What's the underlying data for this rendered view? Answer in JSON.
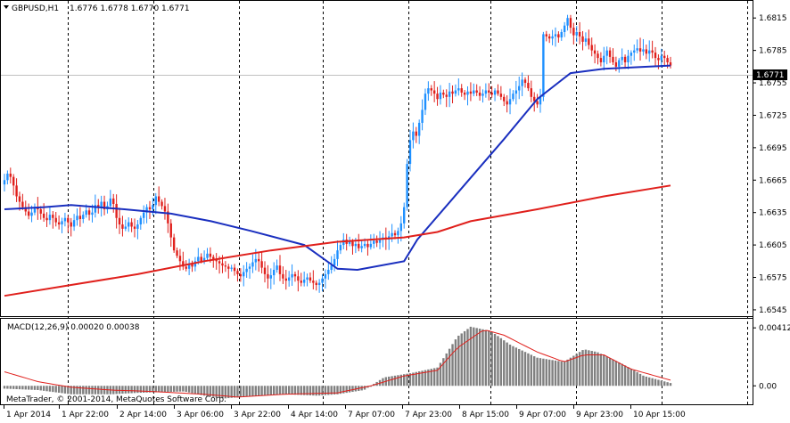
{
  "header": {
    "symbol": "GBPUSD,H1",
    "ohlc": "1.6776 1.6778 1.6770 1.6771"
  },
  "current_price": "1.6771",
  "macd": {
    "label": "MACD(12,26,9) 0.00020 0.00038"
  },
  "copyright": "MetaTrader, © 2001-2014, MetaQuotes Software Corp.",
  "colors": {
    "bull": "#1e90ff",
    "bear": "#e0201c",
    "ma_fast": "#1a2fbf",
    "ma_slow": "#e0201c",
    "macd_hist": "#808080",
    "macd_signal": "#e0201c",
    "grid": "#000000"
  },
  "chart_data": [
    {
      "type": "candlestick",
      "title": "GBPUSD,H1",
      "x_labels": [
        "1 Apr 2014",
        "1 Apr 22:00",
        "2 Apr 14:00",
        "3 Apr 06:00",
        "3 Apr 22:00",
        "4 Apr 14:00",
        "7 Apr 07:00",
        "7 Apr 23:00",
        "8 Apr 15:00",
        "9 Apr 07:00",
        "9 Apr 23:00",
        "10 Apr 15:00"
      ],
      "y_ticks": [
        "1.6815",
        "1.6785",
        "1.6755",
        "1.6725",
        "1.6695",
        "1.6665",
        "1.6635",
        "1.6605",
        "1.6575",
        "1.6545"
      ],
      "ylim": [
        1.654,
        1.683
      ],
      "grid": "vertical dashed",
      "closes": [
        1.6665,
        1.6671,
        1.6668,
        1.666,
        1.665,
        1.6645,
        1.664,
        1.6636,
        1.6632,
        1.6635,
        1.664,
        1.6638,
        1.6634,
        1.663,
        1.6628,
        1.6633,
        1.663,
        1.6626,
        1.6624,
        1.6627,
        1.663,
        1.6626,
        1.6622,
        1.6628,
        1.6632,
        1.6629,
        1.6633,
        1.6637,
        1.6633,
        1.6635,
        1.6642,
        1.664,
        1.6645,
        1.6638,
        1.6641,
        1.6648,
        1.6643,
        1.663,
        1.6624,
        1.662,
        1.6622,
        1.6626,
        1.6622,
        1.662,
        1.6624,
        1.663,
        1.6635,
        1.664,
        1.6638,
        1.6642,
        1.665,
        1.6645,
        1.6641,
        1.6636,
        1.6625,
        1.6612,
        1.66,
        1.6595,
        1.659,
        1.6585,
        1.6583,
        1.6588,
        1.6585,
        1.659,
        1.6594,
        1.659,
        1.6593,
        1.6597,
        1.6594,
        1.6592,
        1.659,
        1.6588,
        1.6586,
        1.6585,
        1.6583,
        1.6584,
        1.6581,
        1.6578,
        1.6576,
        1.658,
        1.6583,
        1.6585,
        1.6589,
        1.6592,
        1.659,
        1.6584,
        1.6578,
        1.6574,
        1.6577,
        1.6582,
        1.6586,
        1.6578,
        1.6574,
        1.6572,
        1.6575,
        1.6578,
        1.6576,
        1.6572,
        1.657,
        1.6573,
        1.6575,
        1.6572,
        1.657,
        1.6568,
        1.657,
        1.6574,
        1.6578,
        1.6582,
        1.6586,
        1.6592,
        1.66,
        1.6605,
        1.661,
        1.6606,
        1.6608,
        1.6604,
        1.6606,
        1.6602,
        1.6604,
        1.6606,
        1.6603,
        1.6606,
        1.6609,
        1.6607,
        1.661,
        1.6612,
        1.661,
        1.6613,
        1.6616,
        1.6614,
        1.6618,
        1.6625,
        1.664,
        1.668,
        1.6702,
        1.671,
        1.6706,
        1.6718,
        1.673,
        1.6745,
        1.675,
        1.6748,
        1.6745,
        1.674,
        1.6746,
        1.6744,
        1.6742,
        1.6747,
        1.6745,
        1.6748,
        1.675,
        1.6746,
        1.6744,
        1.6747,
        1.6745,
        1.6748,
        1.6746,
        1.6743,
        1.6745,
        1.6748,
        1.6746,
        1.6744,
        1.6748,
        1.6745,
        1.6742,
        1.6738,
        1.6735,
        1.674,
        1.6745,
        1.6748,
        1.6752,
        1.6758,
        1.6755,
        1.675,
        1.6742,
        1.6738,
        1.6735,
        1.6742,
        1.68,
        1.6798,
        1.6796,
        1.6798,
        1.68,
        1.6797,
        1.6802,
        1.6808,
        1.6815,
        1.6806,
        1.6799,
        1.6802,
        1.6798,
        1.6793,
        1.6796,
        1.679,
        1.6785,
        1.6782,
        1.6778,
        1.6774,
        1.678,
        1.6785,
        1.6779,
        1.6774,
        1.677,
        1.6776,
        1.6779,
        1.6774,
        1.678,
        1.6783,
        1.6785,
        1.6787,
        1.6784,
        1.6786,
        1.6782,
        1.6785,
        1.6783,
        1.6778,
        1.6776,
        1.678,
        1.6778,
        1.6774,
        1.6771
      ],
      "series": [
        {
          "points": [
            [
              0,
              1.6638
            ],
            [
              0.06,
              1.664
            ],
            [
              0.1,
              1.6642
            ],
            [
              0.18,
              1.6638
            ],
            [
              0.25,
              1.6634
            ],
            [
              0.31,
              1.6627
            ],
            [
              0.37,
              1.6618
            ],
            [
              0.45,
              1.6605
            ],
            [
              0.5,
              1.6583
            ],
            [
              0.53,
              1.6582
            ],
            [
              0.6,
              1.659
            ],
            [
              0.62,
              1.661
            ],
            [
              0.69,
              1.666
            ],
            [
              0.75,
              1.6703
            ],
            [
              0.8,
              1.674
            ],
            [
              0.85,
              1.6764
            ],
            [
              0.9,
              1.6768
            ],
            [
              1.0,
              1.6771
            ]
          ]
        },
        {
          "points": [
            [
              0,
              1.6558
            ],
            [
              0.1,
              1.6568
            ],
            [
              0.2,
              1.6578
            ],
            [
              0.3,
              1.659
            ],
            [
              0.4,
              1.66
            ],
            [
              0.5,
              1.6608
            ],
            [
              0.6,
              1.6612
            ],
            [
              0.65,
              1.6617
            ],
            [
              0.7,
              1.6627
            ],
            [
              0.8,
              1.6638
            ],
            [
              0.9,
              1.665
            ],
            [
              1.0,
              1.666
            ]
          ]
        }
      ],
      "current_price": 1.6771
    },
    {
      "type": "bar",
      "title": "MACD(12,26,9) 0.00020 0.00038",
      "y_ticks": [
        "0.00412",
        "0.00"
      ],
      "ylim": [
        -0.00125,
        0.0047
      ],
      "histogram_keypoints": [
        [
          0,
          -0.0002
        ],
        [
          0.05,
          -0.0003
        ],
        [
          0.1,
          -0.0006
        ],
        [
          0.16,
          -0.0006
        ],
        [
          0.2,
          -0.0005
        ],
        [
          0.27,
          -0.0004
        ],
        [
          0.3,
          -0.0007
        ],
        [
          0.33,
          -0.0009
        ],
        [
          0.38,
          -0.0007
        ],
        [
          0.42,
          -0.0006
        ],
        [
          0.47,
          -0.0007
        ],
        [
          0.5,
          -0.0006
        ],
        [
          0.54,
          -0.0003
        ],
        [
          0.57,
          0.0006
        ],
        [
          0.61,
          0.0009
        ],
        [
          0.65,
          0.0013
        ],
        [
          0.68,
          0.0035
        ],
        [
          0.7,
          0.0042
        ],
        [
          0.73,
          0.0039
        ],
        [
          0.76,
          0.0029
        ],
        [
          0.8,
          0.002
        ],
        [
          0.84,
          0.0017
        ],
        [
          0.87,
          0.0026
        ],
        [
          0.89,
          0.0024
        ],
        [
          0.93,
          0.0015
        ],
        [
          0.96,
          0.0007
        ],
        [
          1.0,
          0.0002
        ]
      ],
      "signal_keypoints": [
        [
          0,
          0.001
        ],
        [
          0.05,
          0.0003
        ],
        [
          0.1,
          -0.0001
        ],
        [
          0.16,
          -0.0003
        ],
        [
          0.22,
          -0.0004
        ],
        [
          0.3,
          -0.0006
        ],
        [
          0.35,
          -0.0008
        ],
        [
          0.42,
          -0.0006
        ],
        [
          0.5,
          -0.0005
        ],
        [
          0.55,
          0.0
        ],
        [
          0.6,
          0.0007
        ],
        [
          0.65,
          0.0011
        ],
        [
          0.68,
          0.0027
        ],
        [
          0.72,
          0.004
        ],
        [
          0.75,
          0.0036
        ],
        [
          0.8,
          0.0024
        ],
        [
          0.84,
          0.0017
        ],
        [
          0.87,
          0.0022
        ],
        [
          0.9,
          0.0022
        ],
        [
          0.94,
          0.0012
        ],
        [
          1.0,
          0.0004
        ]
      ]
    }
  ]
}
